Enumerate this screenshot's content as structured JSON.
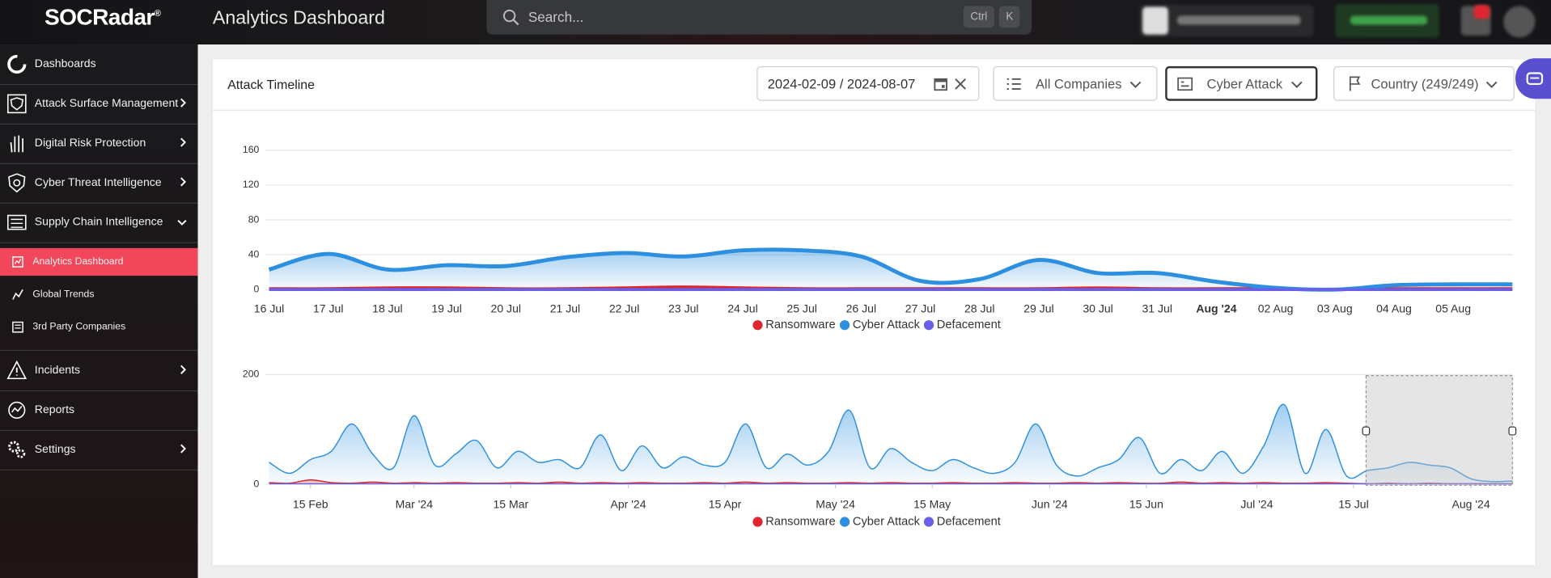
{
  "header": {
    "logo": "SOCRadar",
    "title": "Analytics Dashboard",
    "search_placeholder": "Search...",
    "shortcut": [
      "Ctrl",
      "K"
    ]
  },
  "sidebar": {
    "items": [
      "Dashboards",
      "Attack Surface Management",
      "Digital Risk Protection",
      "Cyber Threat Intelligence",
      "Supply Chain Intelligence"
    ],
    "subitems": [
      "Analytics Dashboard",
      "Global Trends",
      "3rd Party Companies"
    ],
    "bottom_items": [
      "Incidents",
      "Reports",
      "Settings"
    ]
  },
  "panel": {
    "title": "Attack Timeline",
    "date_range": "2024-02-09 / 2024-08-07",
    "filters": [
      "All Companies",
      "Cyber Attack",
      "Country (249/249)"
    ]
  },
  "chart_data": [
    {
      "type": "area",
      "categories": [
        "16 Jul",
        "17 Jul",
        "18 Jul",
        "19 Jul",
        "20 Jul",
        "21 Jul",
        "22 Jul",
        "23 Jul",
        "24 Jul",
        "25 Jul",
        "26 Jul",
        "27 Jul",
        "28 Jul",
        "29 Jul",
        "30 Jul",
        "31 Jul",
        "Aug '24",
        "02 Aug",
        "03 Aug",
        "04 Aug",
        "05 Aug",
        null
      ],
      "series": [
        {
          "name": "Ransomware",
          "color": "#e0262d",
          "values": [
            1,
            1,
            2,
            2,
            1,
            1,
            2,
            3,
            2,
            1,
            1,
            1,
            1,
            1,
            2,
            1,
            1,
            1,
            0,
            1,
            1,
            1
          ]
        },
        {
          "name": "Cyber Attack",
          "color": "#2d8fe0",
          "values": [
            23,
            41,
            23,
            28,
            27,
            37,
            42,
            38,
            45,
            45,
            38,
            10,
            12,
            34,
            19,
            19,
            9,
            2,
            0,
            5,
            6,
            6
          ]
        },
        {
          "name": "Defacement",
          "color": "#6a5fe8",
          "values": [
            0,
            0,
            0,
            0,
            0,
            0,
            0,
            0,
            0,
            0,
            0,
            0,
            0,
            0,
            0,
            0,
            0,
            0,
            0,
            0,
            0,
            0
          ]
        }
      ],
      "ylim": [
        0,
        160
      ],
      "yticks": [
        0,
        40,
        80,
        120,
        160
      ],
      "grid": true,
      "legend": "bottom"
    },
    {
      "type": "area",
      "x": [
        "2024-02-09",
        "2024-02-12",
        "2024-02-15",
        "2024-02-18",
        "2024-02-21",
        "2024-02-24",
        "2024-02-27",
        "2024-03-01",
        "2024-03-04",
        "2024-03-07",
        "2024-03-10",
        "2024-03-13",
        "2024-03-16",
        "2024-03-19",
        "2024-03-22",
        "2024-03-25",
        "2024-03-28",
        "2024-03-31",
        "2024-04-03",
        "2024-04-06",
        "2024-04-09",
        "2024-04-12",
        "2024-04-15",
        "2024-04-18",
        "2024-04-21",
        "2024-04-24",
        "2024-04-27",
        "2024-04-30",
        "2024-05-03",
        "2024-05-06",
        "2024-05-09",
        "2024-05-12",
        "2024-05-15",
        "2024-05-18",
        "2024-05-21",
        "2024-05-24",
        "2024-05-27",
        "2024-05-30",
        "2024-06-02",
        "2024-06-05",
        "2024-06-08",
        "2024-06-11",
        "2024-06-14",
        "2024-06-17",
        "2024-06-20",
        "2024-06-23",
        "2024-06-26",
        "2024-06-29",
        "2024-07-02",
        "2024-07-05",
        "2024-07-08",
        "2024-07-11",
        "2024-07-14",
        "2024-07-17",
        "2024-07-20",
        "2024-07-23",
        "2024-07-26",
        "2024-07-29",
        "2024-08-01",
        "2024-08-04",
        "2024-08-07"
      ],
      "series": [
        {
          "name": "Ransomware",
          "color": "#e0262d",
          "values": [
            3,
            2,
            8,
            3,
            2,
            4,
            2,
            3,
            2,
            3,
            2,
            2,
            3,
            2,
            4,
            2,
            3,
            2,
            3,
            2,
            2,
            3,
            2,
            4,
            2,
            3,
            2,
            2,
            3,
            2,
            3,
            2,
            2,
            3,
            2,
            2,
            3,
            2,
            2,
            3,
            2,
            3,
            2,
            2,
            4,
            2,
            3,
            2,
            3,
            2,
            2,
            3,
            2,
            1,
            2,
            1,
            2,
            1,
            1,
            1,
            1
          ]
        },
        {
          "name": "Cyber Attack",
          "color": "#2d8fe0",
          "values": [
            40,
            20,
            45,
            60,
            110,
            55,
            30,
            125,
            35,
            55,
            80,
            30,
            60,
            40,
            45,
            30,
            90,
            25,
            70,
            30,
            50,
            35,
            40,
            110,
            30,
            55,
            35,
            60,
            135,
            30,
            65,
            40,
            25,
            45,
            30,
            20,
            40,
            110,
            35,
            15,
            30,
            45,
            85,
            20,
            45,
            25,
            60,
            20,
            70,
            145,
            20,
            100,
            15,
            25,
            30,
            40,
            35,
            30,
            10,
            5,
            6
          ]
        },
        {
          "name": "Defacement",
          "color": "#6a5fe8",
          "values": [
            1,
            1,
            1,
            1,
            1,
            1,
            1,
            1,
            1,
            1,
            1,
            1,
            1,
            1,
            1,
            1,
            1,
            1,
            1,
            1,
            1,
            1,
            1,
            1,
            1,
            1,
            1,
            1,
            1,
            1,
            1,
            1,
            1,
            1,
            1,
            1,
            1,
            1,
            1,
            1,
            1,
            1,
            1,
            1,
            1,
            1,
            1,
            1,
            1,
            1,
            1,
            1,
            1,
            1,
            1,
            1,
            1,
            1,
            1,
            1,
            1
          ]
        }
      ],
      "xlim": [
        "2024-02-09",
        "2024-08-07"
      ],
      "xticks": [
        {
          "value": "2024-02-15",
          "label": "15 Feb"
        },
        {
          "value": "2024-03-01",
          "label": "Mar '24"
        },
        {
          "value": "2024-03-15",
          "label": "15 Mar"
        },
        {
          "value": "2024-04-01",
          "label": "Apr '24"
        },
        {
          "value": "2024-04-15",
          "label": "15 Apr"
        },
        {
          "value": "2024-05-01",
          "label": "May '24"
        },
        {
          "value": "2024-05-15",
          "label": "15 May"
        },
        {
          "value": "2024-06-01",
          "label": "Jun '24"
        },
        {
          "value": "2024-06-15",
          "label": "15 Jun"
        },
        {
          "value": "2024-07-01",
          "label": "Jul '24"
        },
        {
          "value": "2024-07-15",
          "label": "15 Jul"
        },
        {
          "value": "2024-08-01",
          "label": "Aug '24"
        }
      ],
      "ylim": [
        0,
        200
      ],
      "yticks": [
        0,
        200
      ],
      "grid": true,
      "legend": "bottom"
    }
  ]
}
